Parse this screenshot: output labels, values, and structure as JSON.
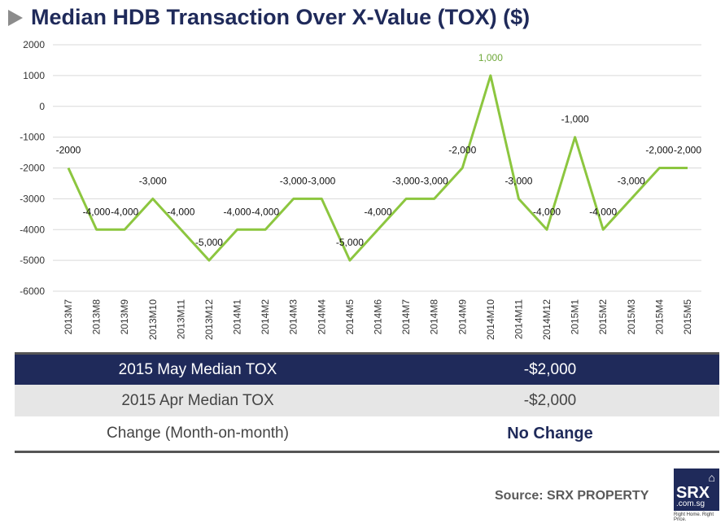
{
  "title": "Median HDB Transaction Over X-Value (TOX) ($)",
  "chart_data": {
    "type": "line",
    "title": "Median HDB Transaction Over X-Value (TOX) ($)",
    "categories": [
      "2013M7",
      "2013M8",
      "2013M9",
      "2013M10",
      "2013M11",
      "2013M12",
      "2014M1",
      "2014M2",
      "2014M3",
      "2014M4",
      "2014M5",
      "2014M6",
      "2014M7",
      "2014M8",
      "2014M9",
      "2014M10",
      "2014M11",
      "2014M12",
      "2015M1",
      "2015M2",
      "2015M3",
      "2015M4",
      "2015M5"
    ],
    "values": [
      -2000,
      -4000,
      -4000,
      -3000,
      -4000,
      -5000,
      -4000,
      -4000,
      -3000,
      -3000,
      -5000,
      -4000,
      -3000,
      -3000,
      -2000,
      1000,
      -3000,
      -4000,
      -1000,
      -4000,
      -3000,
      -2000,
      -2000
    ],
    "data_labels": [
      "-2000",
      "-4,000",
      "-4,000",
      "-3,000",
      "-4,000",
      "-5,000",
      "-4,000",
      "-4,000",
      "-3,000",
      "-3,000",
      "-5,000",
      "-4,000",
      "-3,000",
      "-3,000",
      "-2,000",
      "1,000",
      "-3,000",
      "-4,000",
      "-1,000",
      "-4,000",
      "-3,000",
      "-2,000",
      "-2,000"
    ],
    "yticks": [
      "2000",
      "1000",
      "0",
      "-1000",
      "-2000",
      "-3000",
      "-4000",
      "-5000",
      "-6000"
    ],
    "ylim": [
      -6000,
      2000
    ],
    "grid": true,
    "line_color": "#8cc63f",
    "highlight_label_color": "#6fa83a"
  },
  "table": {
    "rows": [
      {
        "label": "2015 May Median TOX",
        "value": "-$2,000"
      },
      {
        "label": "2015 Apr Median TOX",
        "value": "-$2,000"
      },
      {
        "label": "Change (Month-on-month)",
        "value": "No Change"
      }
    ]
  },
  "source": "Source:  SRX PROPERTY",
  "logo": {
    "name": "SRX",
    "domain": ".com.sg",
    "tagline": "Right Home. Right Price."
  }
}
